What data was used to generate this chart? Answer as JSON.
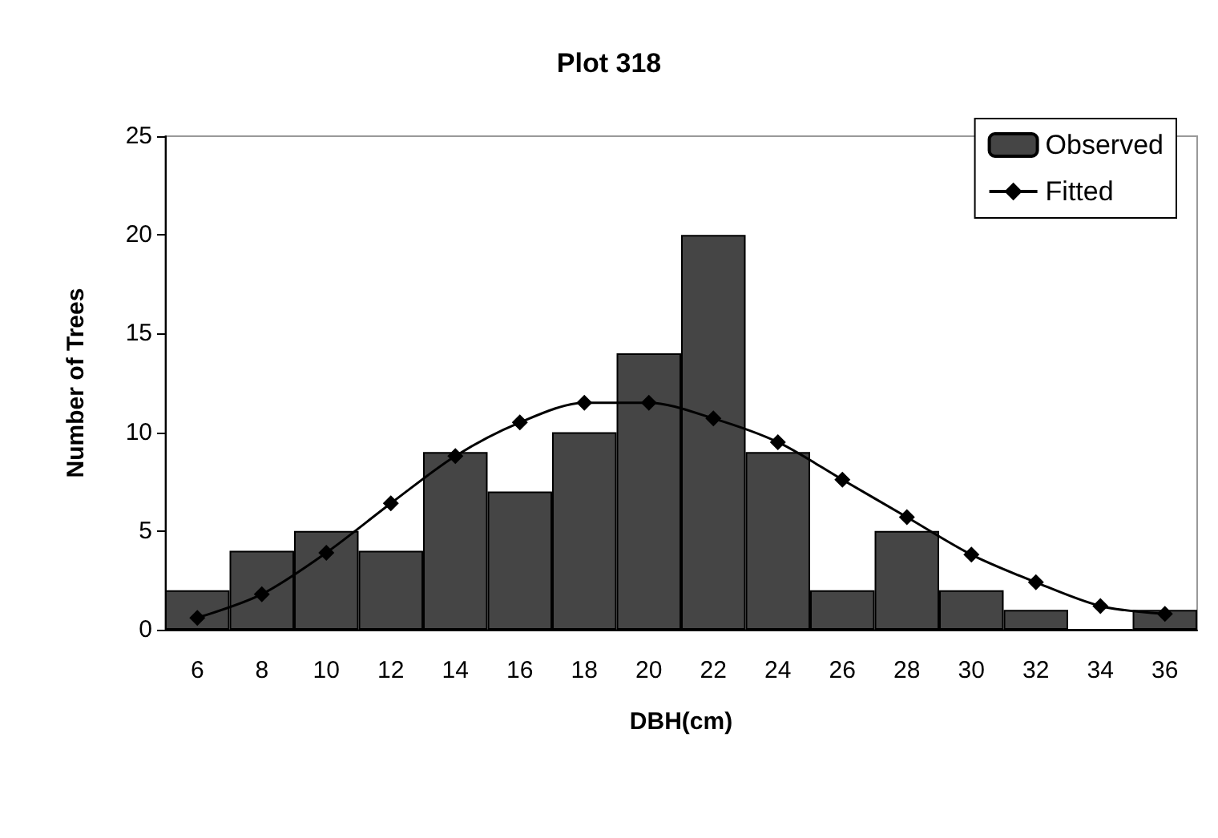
{
  "chart_data": {
    "type": "bar",
    "title": "Plot 318",
    "xlabel": "DBH(cm)",
    "ylabel": "Number of Trees",
    "categories": [
      "6",
      "8",
      "10",
      "12",
      "14",
      "16",
      "18",
      "20",
      "22",
      "24",
      "26",
      "28",
      "30",
      "32",
      "34",
      "36"
    ],
    "series": [
      {
        "name": "Observed",
        "color": "#454545",
        "values": [
          2,
          4,
          5,
          4,
          9,
          7,
          10,
          14,
          20,
          9,
          2,
          5,
          2,
          1,
          0,
          1
        ]
      },
      {
        "name": "Fitted",
        "type": "line",
        "color": "#000000",
        "marker": "diamond",
        "line_style": "solid",
        "values": [
          0.6,
          1.8,
          3.9,
          6.4,
          8.8,
          10.5,
          11.5,
          11.5,
          10.7,
          9.5,
          7.6,
          5.7,
          3.8,
          2.4,
          1.2,
          0.8
        ]
      }
    ],
    "ylim": [
      0,
      25
    ],
    "yticks": [
      0,
      5,
      10,
      15,
      20,
      25
    ],
    "grid": false,
    "legend": "top right"
  }
}
